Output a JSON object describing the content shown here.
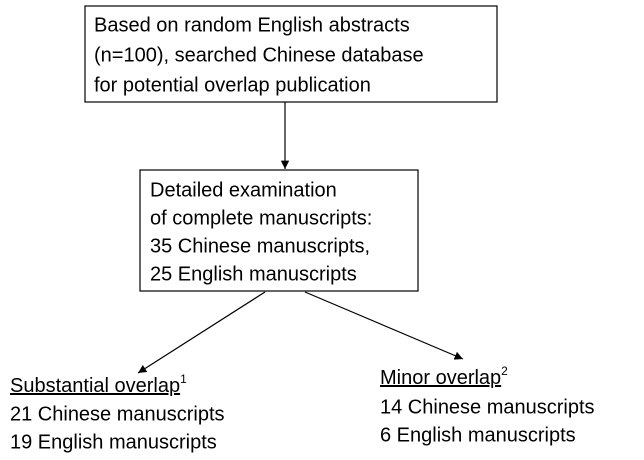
{
  "nodes": [
    {
      "lines": [
        "Based on random English abstracts",
        "(n=100), searched Chinese database",
        "for potential overlap publication"
      ]
    },
    {
      "lines": [
        "Detailed examination",
        "of complete manuscripts:",
        "35 Chinese manuscripts,",
        "25 English manuscripts"
      ]
    },
    {
      "heading": "Substantial overlap",
      "note": "1",
      "lines": [
        "21 Chinese manuscripts",
        "19 English manuscripts"
      ]
    },
    {
      "heading": "Minor overlap",
      "note": "2",
      "lines": [
        "14 Chinese manuscripts",
        "6 English manuscripts"
      ]
    }
  ]
}
